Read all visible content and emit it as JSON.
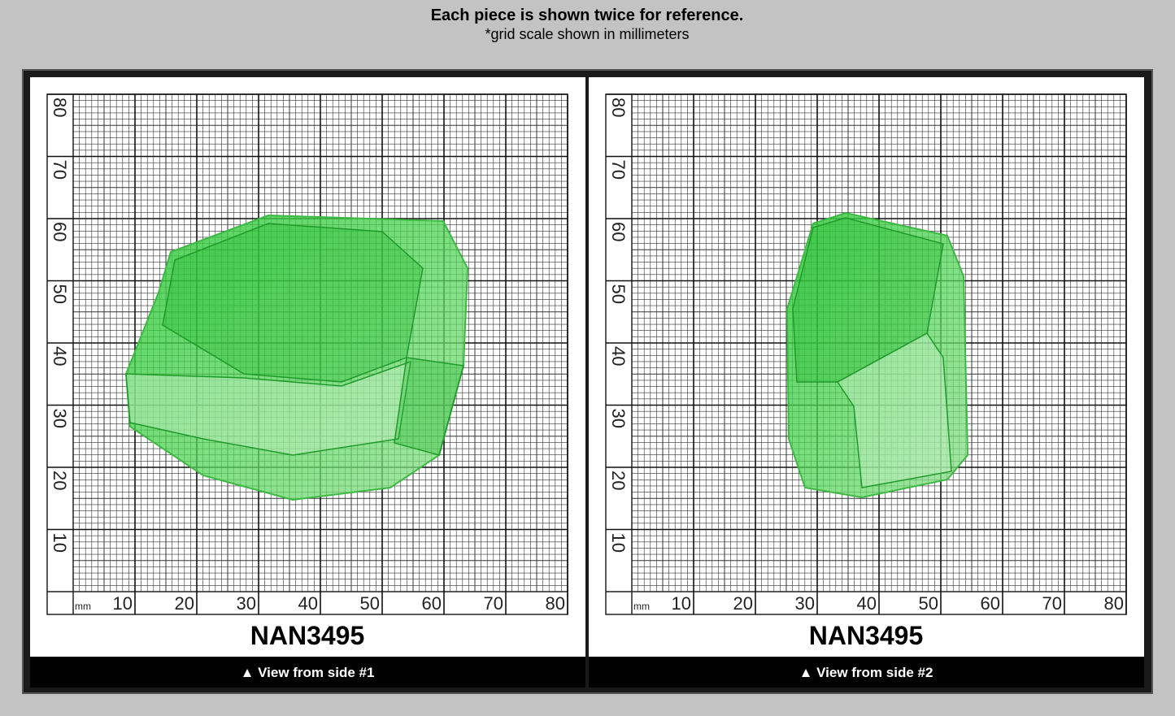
{
  "header": {
    "title": "Each piece is shown twice for reference.",
    "subtitle": "*grid scale shown in millimeters"
  },
  "scale": {
    "unit": "mm",
    "ticks": [
      10,
      20,
      30,
      40,
      50,
      60,
      70,
      80
    ]
  },
  "panels": [
    {
      "label": "NAN3495",
      "caption": "▲ View from side #1"
    },
    {
      "label": "NAN3495",
      "caption": "▲ View from side #2"
    }
  ]
}
